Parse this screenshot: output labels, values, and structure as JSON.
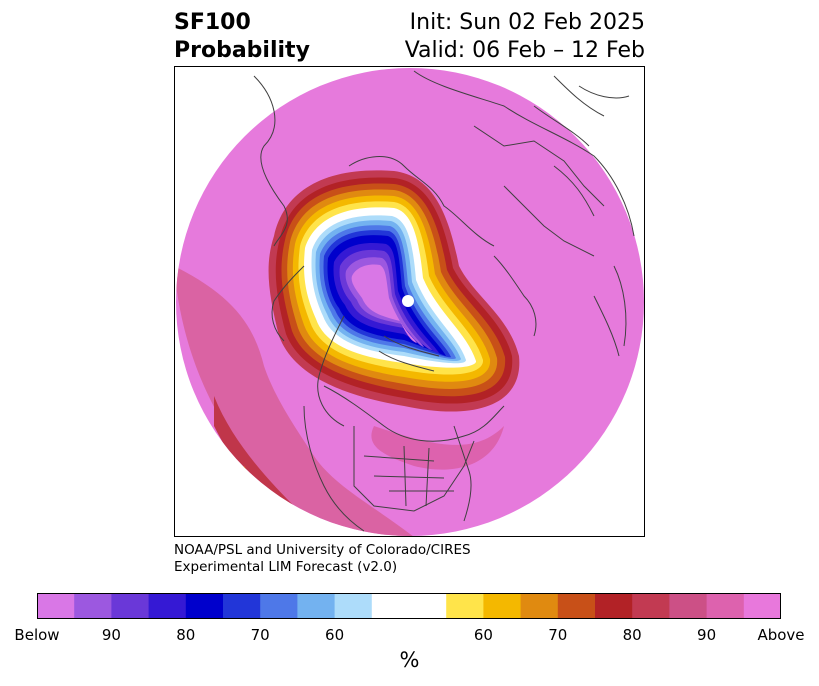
{
  "title": {
    "left_line1": "SF100",
    "left_line2": "Probability",
    "right_line1": "Init: Sun 02 Feb 2025",
    "right_line2": "Valid: 06 Feb – 12 Feb"
  },
  "credit": {
    "line1": "NOAA/PSL and University of Colorado/CIRES",
    "line2": "Experimental LIM Forecast (v2.0)"
  },
  "colorbar": {
    "colors": [
      "#d977e6",
      "#9c58e0",
      "#6a38d8",
      "#3519d4",
      "#0000cc",
      "#2236d8",
      "#4e78e8",
      "#73b2f0",
      "#addcfa",
      "#ffffff",
      "#ffffff",
      "#ffe44a",
      "#f4b800",
      "#e08a10",
      "#c85018",
      "#b22226",
      "#c23a52",
      "#cc5086",
      "#dd62ae",
      "#e878dc"
    ],
    "tick_labels": [
      "Below",
      "90",
      "80",
      "70",
      "60",
      "60",
      "70",
      "80",
      "90",
      "Above"
    ],
    "unit": "%"
  },
  "map": {
    "background_fill": "#e67adc",
    "coastline_color": "#404040"
  }
}
